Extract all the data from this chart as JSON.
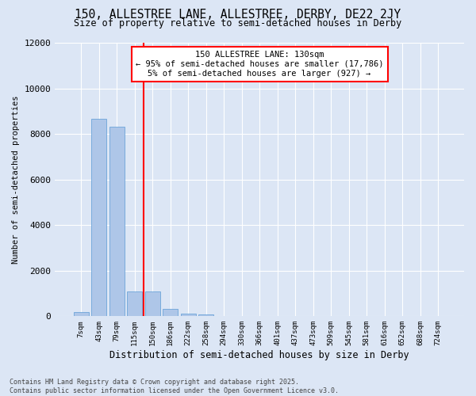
{
  "title1": "150, ALLESTREE LANE, ALLESTREE, DERBY, DE22 2JY",
  "title2": "Size of property relative to semi-detached houses in Derby",
  "xlabel": "Distribution of semi-detached houses by size in Derby",
  "ylabel": "Number of semi-detached properties",
  "categories": [
    "7sqm",
    "43sqm",
    "79sqm",
    "115sqm",
    "150sqm",
    "186sqm",
    "222sqm",
    "258sqm",
    "294sqm",
    "330sqm",
    "366sqm",
    "401sqm",
    "437sqm",
    "473sqm",
    "509sqm",
    "545sqm",
    "581sqm",
    "616sqm",
    "652sqm",
    "688sqm",
    "724sqm"
  ],
  "values": [
    200,
    8650,
    8300,
    1100,
    1100,
    340,
    120,
    70,
    0,
    0,
    0,
    0,
    0,
    0,
    0,
    0,
    0,
    0,
    0,
    0,
    0
  ],
  "bar_color": "#aec6e8",
  "bar_edge_color": "#5b9bd5",
  "vline_index": 3.5,
  "vline_color": "red",
  "annotation_title": "150 ALLESTREE LANE: 130sqm",
  "annotation_line1": "← 95% of semi-detached houses are smaller (17,786)",
  "annotation_line2": "5% of semi-detached houses are larger (927) →",
  "annotation_box_color": "white",
  "annotation_box_edge": "red",
  "ylim": [
    0,
    12000
  ],
  "yticks": [
    0,
    2000,
    4000,
    6000,
    8000,
    10000,
    12000
  ],
  "footer_line1": "Contains HM Land Registry data © Crown copyright and database right 2025.",
  "footer_line2": "Contains public sector information licensed under the Open Government Licence v3.0.",
  "bg_color": "#dce6f5",
  "plot_bg_color": "#dce6f5",
  "grid_color": "#ffffff"
}
